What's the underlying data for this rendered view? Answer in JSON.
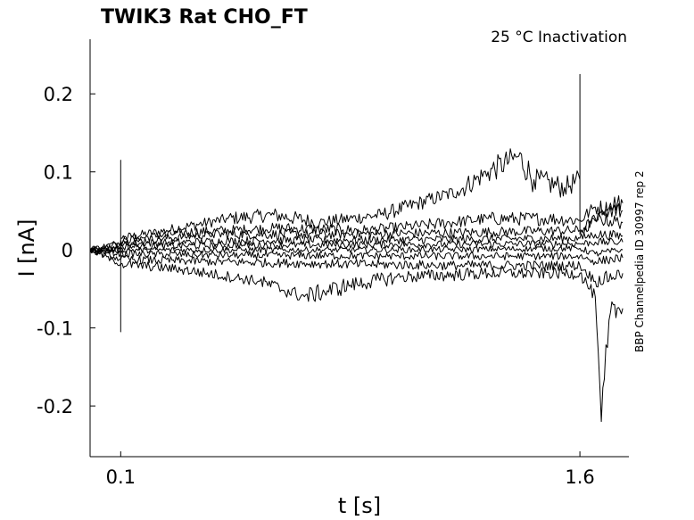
{
  "chart_data": {
    "type": "line",
    "title": "TWIK3  Rat  CHO_FT",
    "subtitle": "25 °C  Inactivation",
    "side_label": "BBP Channelpedia ID 30997 rep 2",
    "xlabel": "t [s]",
    "ylabel": "I [nA]",
    "xlim": [
      0.0,
      1.76
    ],
    "ylim": [
      -0.265,
      0.27
    ],
    "x_ticks": [
      0.1,
      1.6
    ],
    "x_tick_labels": [
      "0.1",
      "1.6"
    ],
    "y_ticks": [
      0.2,
      0.1,
      0,
      -0.1,
      -0.2
    ],
    "y_tick_labels": [
      "0.2",
      "0.1",
      "0",
      "-0.1",
      "-0.2"
    ],
    "grid": false,
    "legend": "none",
    "line_color": "#000000",
    "series": [
      {
        "x": [
          0.0,
          0.1,
          0.1,
          0.1,
          0.25,
          0.45,
          0.6,
          0.75,
          0.95,
          1.2,
          1.3,
          1.4,
          1.45,
          1.55,
          1.6,
          1.6,
          1.6,
          1.7,
          1.74
        ],
        "y": [
          0.0,
          0.0,
          0.115,
          0.015,
          0.025,
          0.04,
          0.045,
          0.035,
          0.045,
          0.075,
          0.1,
          0.12,
          0.09,
          0.08,
          0.09,
          0.225,
          0.02,
          0.06,
          0.06
        ]
      },
      {
        "x": [
          0.0,
          0.1,
          0.1,
          0.1,
          0.3,
          0.6,
          0.9,
          1.1,
          1.3,
          1.5,
          1.6,
          1.65,
          1.74
        ],
        "y": [
          0.0,
          0.0,
          -0.105,
          0.012,
          0.022,
          0.028,
          0.025,
          0.032,
          0.04,
          0.04,
          0.038,
          0.055,
          0.05
        ]
      },
      {
        "x": [
          0.0,
          0.1,
          0.4,
          0.8,
          1.2,
          1.6,
          1.65,
          1.74
        ],
        "y": [
          0.0,
          0.01,
          0.02,
          0.02,
          0.022,
          0.025,
          0.04,
          0.035
        ]
      },
      {
        "x": [
          0.0,
          0.1,
          0.5,
          1.0,
          1.6,
          1.65,
          1.74
        ],
        "y": [
          0.0,
          0.008,
          0.012,
          0.013,
          0.015,
          0.02,
          0.018
        ]
      },
      {
        "x": [
          0.0,
          0.1,
          0.5,
          1.0,
          1.6,
          1.65,
          1.74
        ],
        "y": [
          0.0,
          0.004,
          0.006,
          0.007,
          0.008,
          0.01,
          0.01
        ]
      },
      {
        "x": [
          0.0,
          0.1,
          0.5,
          1.0,
          1.6,
          1.65,
          1.74
        ],
        "y": [
          0.0,
          0.0,
          0.0,
          0.0,
          0.002,
          -0.005,
          0.0
        ]
      },
      {
        "x": [
          0.0,
          0.1,
          0.5,
          1.0,
          1.6,
          1.65,
          1.74
        ],
        "y": [
          0.0,
          -0.005,
          -0.007,
          -0.008,
          -0.008,
          -0.015,
          -0.01
        ]
      },
      {
        "x": [
          0.0,
          0.1,
          0.4,
          0.8,
          1.2,
          1.6,
          1.65,
          1.74
        ],
        "y": [
          0.0,
          -0.012,
          -0.015,
          -0.018,
          -0.02,
          -0.02,
          -0.04,
          -0.03
        ]
      },
      {
        "x": [
          0.0,
          0.1,
          0.3,
          0.55,
          0.7,
          0.85,
          1.0,
          1.3,
          1.6,
          1.65,
          1.67,
          1.7,
          1.74
        ],
        "y": [
          0.0,
          -0.018,
          -0.025,
          -0.04,
          -0.06,
          -0.045,
          -0.035,
          -0.03,
          -0.03,
          -0.06,
          -0.22,
          -0.08,
          -0.075
        ]
      }
    ]
  }
}
